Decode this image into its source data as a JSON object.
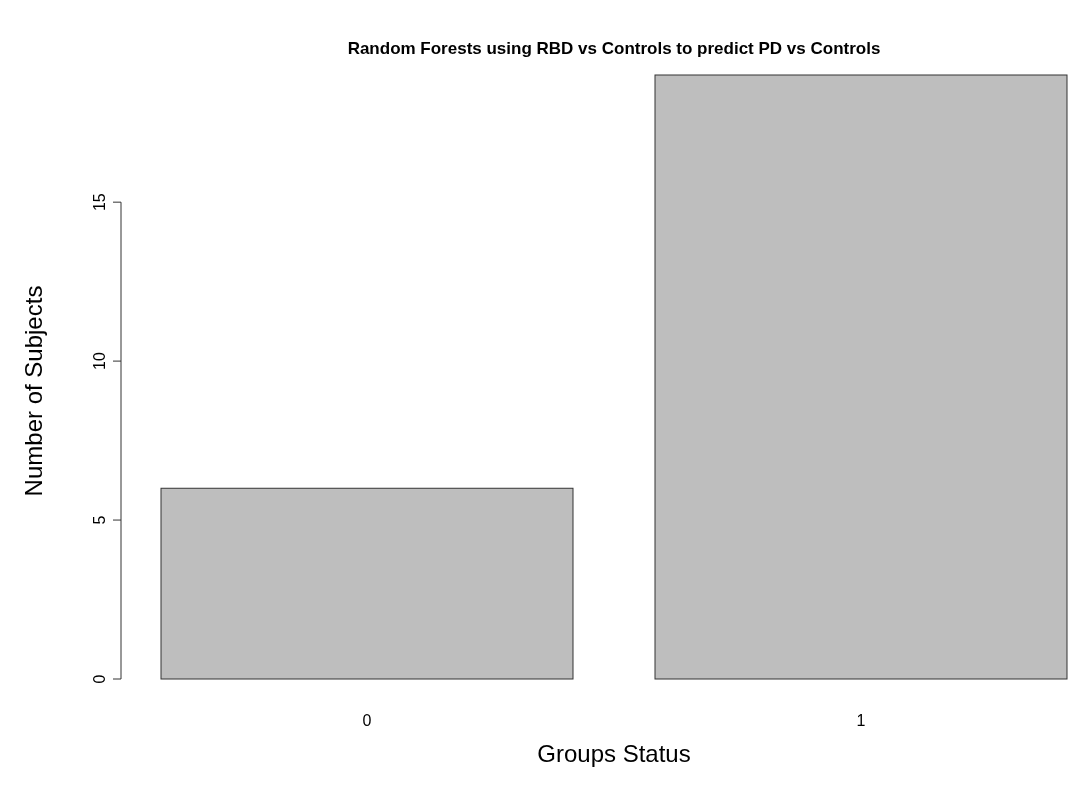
{
  "chart_data": {
    "type": "bar",
    "title": "Random Forests using RBD vs Controls to predict PD vs Controls",
    "xlabel": "Groups Status",
    "ylabel": "Number of Subjects",
    "categories": [
      "0",
      "1"
    ],
    "values": [
      6,
      19
    ],
    "color": "#bebebe",
    "ylim": [
      0,
      19
    ],
    "yticks": [
      0,
      5,
      10,
      15
    ],
    "grid": false
  }
}
